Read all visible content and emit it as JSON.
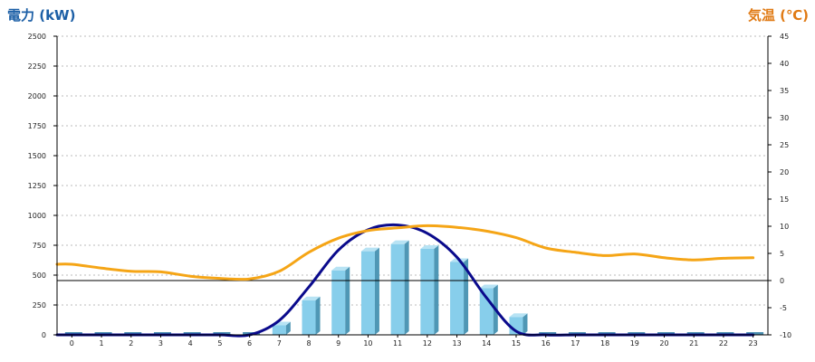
{
  "chart_data": {
    "type": "bar",
    "title": "",
    "y_left_label": "電力 (kW)",
    "y_right_label": "気温 (℃)",
    "y_left_range": [
      0,
      2500
    ],
    "y_left_ticks": [
      0,
      250,
      500,
      750,
      1000,
      1250,
      1500,
      1750,
      2000,
      2250,
      2500
    ],
    "y_right_range": [
      -10,
      45
    ],
    "y_right_ticks": [
      -10,
      -5,
      0,
      5,
      10,
      15,
      20,
      25,
      30,
      35,
      40,
      45
    ],
    "categories": [
      "0",
      "1",
      "2",
      "3",
      "4",
      "5",
      "6",
      "7",
      "8",
      "9",
      "10",
      "11",
      "12",
      "13",
      "14",
      "15",
      "16",
      "17",
      "18",
      "19",
      "20",
      "21",
      "22",
      "23"
    ],
    "series": [
      {
        "kind": "bar",
        "axis": "left",
        "values": [
          0,
          0,
          0,
          0,
          0,
          0,
          0,
          80,
          290,
          540,
          700,
          760,
          720,
          610,
          390,
          150,
          0,
          0,
          0,
          0,
          0,
          0,
          0,
          0
        ]
      },
      {
        "kind": "line",
        "axis": "left",
        "values": [
          0,
          0,
          0,
          0,
          0,
          0,
          0,
          120,
          400,
          710,
          880,
          920,
          850,
          650,
          310,
          30,
          0,
          0,
          0,
          0,
          0,
          0,
          0,
          0
        ]
      },
      {
        "kind": "line",
        "axis": "right",
        "values": [
          3.0,
          2.3,
          1.7,
          1.6,
          0.8,
          0.4,
          0.3,
          1.7,
          5.2,
          7.8,
          9.2,
          9.7,
          10.1,
          9.8,
          9.1,
          7.9,
          6.0,
          5.2,
          4.6,
          4.9,
          4.2,
          3.8,
          4.1,
          4.2
        ]
      }
    ],
    "reference_line": {
      "axis": "right",
      "value": 0
    },
    "colors": {
      "bar_front": "#87ceeb",
      "bar_side": "#4f97b5",
      "bar_top": "#b7e3f4",
      "base_bar": "#4a8eb0",
      "power_line": "#0a0a8c",
      "temp_line": "#f5a516",
      "left_axis_title": "#1c5fa6",
      "right_axis_title": "#e07a14",
      "grid": "#bbbbbb"
    },
    "grid": true
  }
}
